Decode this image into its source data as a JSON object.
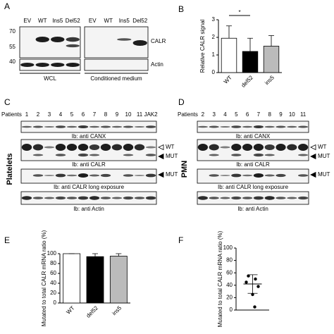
{
  "panel_labels": [
    "A",
    "B",
    "C",
    "D",
    "E",
    "F"
  ],
  "panel_a": {
    "lanes_left": [
      "EV",
      "WT",
      "Ins5",
      "Del52"
    ],
    "lanes_right": [
      "EV",
      "WT",
      "Ins5",
      "Del52"
    ],
    "markers": [
      70,
      55,
      40
    ],
    "blot_labels": [
      "CALR",
      "Actin"
    ],
    "groups": [
      "WCL",
      "Conditioned medium"
    ]
  },
  "panel_c": {
    "side_label": "Platelets",
    "patients_label": "Patients",
    "lanes": [
      "1",
      "2",
      "3",
      "4",
      "5",
      "6",
      "7",
      "8",
      "9",
      "10",
      "11",
      "JAK2"
    ],
    "blots": [
      "Ib: anti CANX",
      "Ib: anti CALR",
      "Ib: anti CALR long exposure",
      "Ib: anti Actin"
    ],
    "arrows": [
      "WT",
      "MUT",
      "MUT"
    ]
  },
  "panel_d": {
    "side_label": "PMN",
    "patients_label": "Patients",
    "lanes": [
      "2",
      "3",
      "4",
      "5",
      "6",
      "7",
      "8",
      "9",
      "10",
      "11"
    ],
    "blots": [
      "Ib: anti CANX",
      "Ib: anti CALR",
      "Ib: anti CALR long exposure",
      "Ib: anti Actin"
    ],
    "arrows": [
      "WT",
      "MUT",
      "MUT"
    ]
  },
  "chart_data": [
    {
      "type": "bar",
      "ylabel": "Relative CALR signal",
      "categories": [
        "WT",
        "del52",
        "ins5"
      ],
      "values": [
        1.95,
        1.2,
        1.5
      ],
      "errors": [
        0.7,
        0.75,
        0.6
      ],
      "colors": [
        "#ffffff",
        "#000000",
        "#bbbbbb"
      ],
      "ylim": [
        0,
        3
      ],
      "yticks": [
        0,
        1,
        2,
        3
      ],
      "annotation": "*"
    },
    {
      "type": "bar",
      "ylabel": "Mutated to total CALR mRNA ratio (%)",
      "categories": [
        "WT",
        "del52",
        "ins5"
      ],
      "values": [
        100,
        94,
        95
      ],
      "errors": [
        0,
        6,
        5
      ],
      "colors": [
        "#ffffff",
        "#000000",
        "#bbbbbb"
      ],
      "ylim": [
        0,
        100
      ],
      "yticks": [
        0,
        20,
        40,
        60,
        80,
        100
      ]
    },
    {
      "type": "scatter",
      "ylabel": "Mutated to total CALR mRNA ratio (%)",
      "values": [
        55,
        50,
        45,
        38,
        25,
        5
      ],
      "mean": 42,
      "error": 15,
      "color": "#000000",
      "ylim": [
        0,
        100
      ],
      "yticks": [
        0,
        20,
        40,
        60,
        80,
        100
      ]
    }
  ]
}
